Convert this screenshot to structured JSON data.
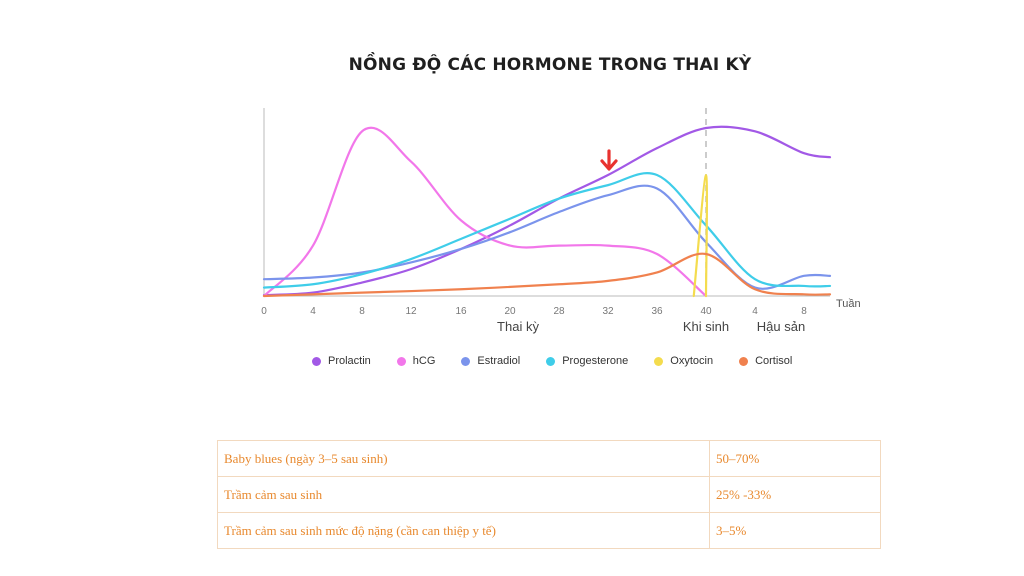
{
  "title": "NỒNG ĐỘ CÁC HORMONE TRONG THAI KỲ",
  "chart_data": {
    "type": "line",
    "x_axis_unit": "Tuần",
    "x_ticks": [
      "0",
      "4",
      "8",
      "12",
      "16",
      "20",
      "28",
      "32",
      "36",
      "40",
      "4",
      "8"
    ],
    "x_groups": [
      "Thai kỳ",
      "Khi sinh",
      "Hậu sản"
    ],
    "series": [
      {
        "name": "Prolactin",
        "color": "#a259e6",
        "x": [
          0,
          4,
          8,
          12,
          16,
          20,
          28,
          32,
          36,
          40,
          4,
          8
        ],
        "y": [
          0.5,
          2,
          8,
          16,
          28,
          42,
          58,
          72,
          88,
          100,
          98,
          85
        ]
      },
      {
        "name": "hCG",
        "color": "#f277ea",
        "x": [
          0,
          4,
          8,
          12,
          16,
          20,
          28,
          32,
          36,
          40
        ],
        "y": [
          0,
          30,
          98,
          80,
          45,
          30,
          30,
          30,
          25,
          0
        ]
      },
      {
        "name": "Estradiol",
        "color": "#7b94ec",
        "x": [
          0,
          4,
          8,
          12,
          16,
          20,
          28,
          32,
          36,
          40,
          4,
          8
        ],
        "y": [
          10,
          11,
          14,
          20,
          28,
          38,
          50,
          60,
          64,
          32,
          5,
          12
        ]
      },
      {
        "name": "Progesterone",
        "color": "#3fcde9",
        "x": [
          0,
          4,
          8,
          12,
          16,
          20,
          28,
          32,
          36,
          40,
          4,
          8
        ],
        "y": [
          5,
          7,
          13,
          22,
          34,
          46,
          58,
          66,
          72,
          42,
          10,
          6
        ]
      },
      {
        "name": "Oxytocin",
        "color": "#f4dc4e",
        "x": [
          39,
          40,
          41
        ],
        "y": [
          0,
          72,
          0
        ]
      },
      {
        "name": "Cortisol",
        "color": "#f0814e",
        "x": [
          0,
          8,
          16,
          28,
          32,
          36,
          40,
          4,
          8
        ],
        "y": [
          0,
          2,
          4,
          7,
          9,
          14,
          25,
          4,
          1
        ]
      }
    ],
    "annotation": "red-down-arrow"
  },
  "legend": [
    "Prolactin",
    "hCG",
    "Estradiol",
    "Progesterone",
    "Oxytocin",
    "Cortisol"
  ],
  "table": {
    "rows": [
      {
        "label": "Baby blues (ngày 3–5 sau sinh)",
        "value": "50–70%"
      },
      {
        "label": "Trầm cảm sau sinh",
        "value": "25% -33%"
      },
      {
        "label": "Trầm cảm sau sinh mức độ nặng (cần can thiệp y tế)",
        "value": "3–5%"
      }
    ]
  },
  "colors": {
    "table_text": "#e8892e",
    "table_border": "#f2d9bf",
    "axis": "#bbbbbb",
    "arrow": "#e8322f"
  }
}
